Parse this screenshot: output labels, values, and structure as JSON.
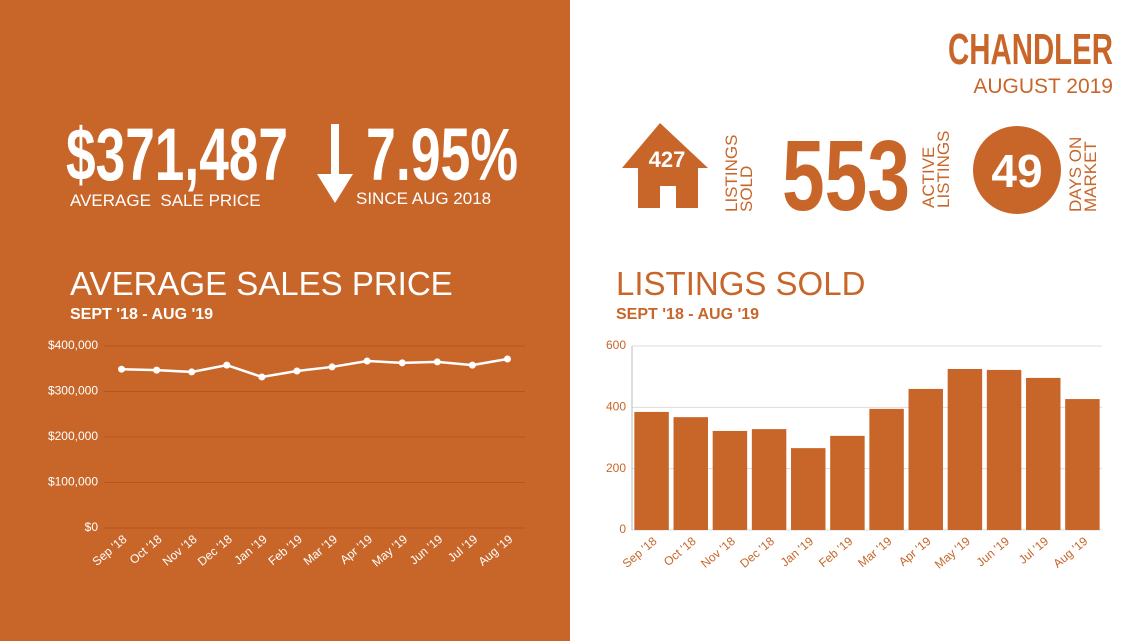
{
  "header": {
    "city": "CHANDLER",
    "date": "AUGUST 2019"
  },
  "stats": {
    "avg_price": "$371,487",
    "avg_price_label": "AVERAGE  SALE PRICE",
    "change": "7.95%",
    "change_label": "SINCE AUG 2018",
    "listings_sold": "427",
    "listings_sold_label": [
      "LISTINGS",
      "SOLD"
    ],
    "active_listings": "553",
    "active_listings_label": [
      "ACTIVE",
      "LISTINGS"
    ],
    "days_on_market": "49",
    "days_on_market_label": [
      "DAYS ON",
      "MARKET"
    ]
  },
  "chart_data": [
    {
      "type": "line",
      "title": "AVERAGE SALES PRICE",
      "subtitle": "SEPT '18 - AUG '19",
      "categories": [
        "Sep '18",
        "Oct '18",
        "Nov '18",
        "Dec '18",
        "Jan '19",
        "Feb '19",
        "Mar '19",
        "Apr '19",
        "May '19",
        "Jun '19",
        "Jul '19",
        "Aug '19"
      ],
      "values": [
        349000,
        347000,
        343000,
        358000,
        332000,
        345000,
        354000,
        367000,
        363000,
        365000,
        358000,
        371487
      ],
      "color": "#ffffff",
      "ylim": [
        0,
        400000
      ],
      "yticks": [
        {
          "value": 0,
          "label": "$0"
        },
        {
          "value": 100000,
          "label": "$100,000"
        },
        {
          "value": 200000,
          "label": "$200,000"
        },
        {
          "value": 300000,
          "label": "$300,000"
        },
        {
          "value": 400000,
          "label": "$400,000"
        }
      ],
      "grid": true
    },
    {
      "type": "bar",
      "title": "LISTINGS SOLD",
      "subtitle": "SEPT '18 - AUG '19",
      "categories": [
        "Sep '18",
        "Oct '18",
        "Nov '18",
        "Dec '18",
        "Jan '19",
        "Feb '19",
        "Mar '19",
        "Apr '19",
        "May '19",
        "Jun '19",
        "Jul '19",
        "Aug '19"
      ],
      "values": [
        385,
        368,
        323,
        329,
        267,
        307,
        395,
        460,
        525,
        522,
        496,
        427
      ],
      "color": "#c8662a",
      "ylim": [
        0,
        600
      ],
      "yticks": [
        0,
        200,
        400,
        600
      ],
      "grid": true
    }
  ]
}
